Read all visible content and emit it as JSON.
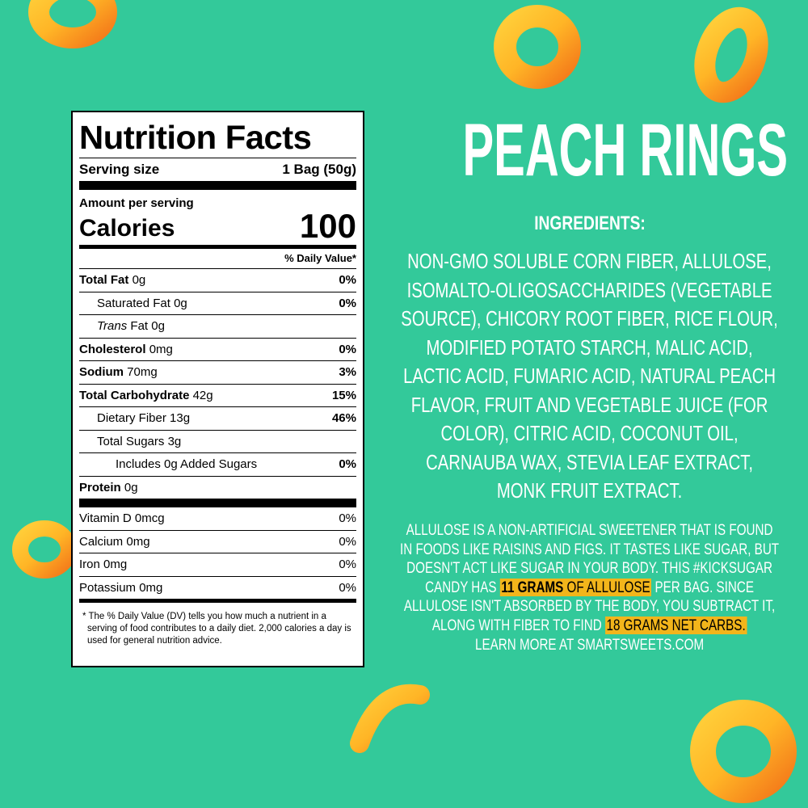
{
  "nutrition_facts": {
    "title": "Nutrition Facts",
    "serving_size": {
      "label": "Serving size",
      "value": "1 Bag (50g)"
    },
    "amount_per_serving": "Amount per serving",
    "calories": {
      "label": "Calories",
      "value": 100
    },
    "daily_value_header": "% Daily Value*",
    "total_fat": {
      "name": "Total Fat",
      "amount": "0g",
      "dv": "0%"
    },
    "saturated_fat": {
      "name": "Saturated Fat",
      "amount": "0g",
      "dv": "0%"
    },
    "trans_fat": {
      "prefix": "Trans",
      "name": "Fat",
      "amount": "0g"
    },
    "cholesterol": {
      "name": "Cholesterol",
      "amount": "0mg",
      "dv": "0%"
    },
    "sodium": {
      "name": "Sodium",
      "amount": "70mg",
      "dv": "3%"
    },
    "total_carbohydrate": {
      "name": "Total Carbohydrate",
      "amount": "42g",
      "dv": "15%"
    },
    "dietary_fiber": {
      "name": "Dietary Fiber",
      "amount": "13g",
      "dv": "46%"
    },
    "total_sugars": {
      "name": "Total Sugars",
      "amount": "3g"
    },
    "added_sugars": {
      "name": "Includes 0g Added Sugars",
      "dv": "0%"
    },
    "protein": {
      "name": "Protein",
      "amount": "0g"
    },
    "vitamin_d": {
      "name": "Vitamin D",
      "amount": "0mcg",
      "dv": "0%"
    },
    "calcium": {
      "name": "Calcium",
      "amount": "0mg",
      "dv": "0%"
    },
    "iron": {
      "name": "Iron",
      "amount": "0mg",
      "dv": "0%"
    },
    "potassium": {
      "name": "Potassium",
      "amount": "0mg",
      "dv": "0%"
    },
    "footnote": "* The % Daily Value (DV) tells you how much a nutrient in a serving of food contributes to a daily diet. 2,000 calories a day is used for general nutrition advice."
  },
  "product": {
    "title": "PEACH RINGS",
    "ingredients_heading": "INGREDIENTS:",
    "ingredients": "NON-GMO SOLUBLE CORN FIBER, ALLULOSE, ISOMALTO-OLIGOSACCHARIDES (VEGETABLE SOURCE), CHICORY ROOT FIBER, RICE FLOUR, MODIFIED POTATO STARCH, MALIC ACID, LACTIC ACID, FUMARIC ACID, NATURAL PEACH FLAVOR, FRUIT AND VEGETABLE JUICE (FOR COLOR), CITRIC ACID, COCONUT OIL, CARNAUBA WAX, STEVIA LEAF EXTRACT, MONK FRUIT EXTRACT.",
    "note": {
      "intro": "ALLULOSE IS A NON-ARTIFICIAL SWEETENER THAT IS FOUND IN FOODS LIKE RAISINS AND FIGS. IT TASTES LIKE SUGAR, BUT DOESN'T ACT LIKE SUGAR IN YOUR BODY. THIS #KICKSUGAR CANDY HAS",
      "allulose_amount": "11 GRAMS",
      "allulose_label": "OF ALLULOSE",
      "middle": "PER BAG. SINCE ALLULOSE ISN'T ABSORBED BY THE BODY, YOU SUBTRACT IT, ALONG WITH FIBER TO FIND",
      "net_carbs": "18 GRAMS NET CARBS.",
      "learn_more": "LEARN MORE AT SMARTSWEETS.COM"
    }
  }
}
